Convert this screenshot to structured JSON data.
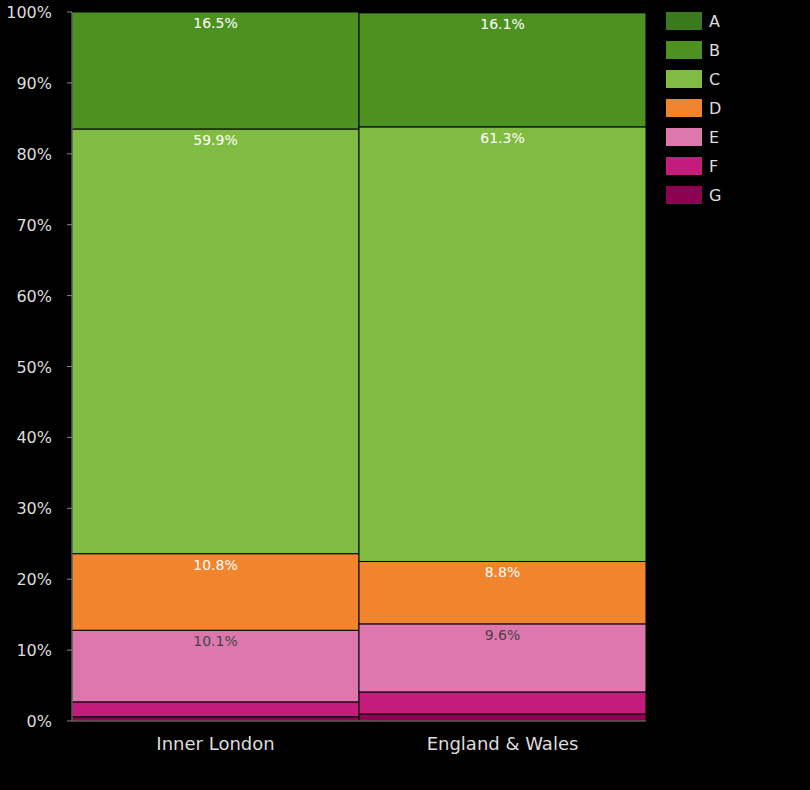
{
  "chart_data": {
    "type": "bar",
    "stacked": true,
    "data_labels": true,
    "legend": "top-right",
    "categories": [
      "Inner London",
      "England & Wales"
    ],
    "ylim": [
      0,
      100
    ],
    "yticks": [
      {
        "value": 0,
        "label": "0%"
      },
      {
        "value": 10,
        "label": "10%"
      },
      {
        "value": 20,
        "label": "20%"
      },
      {
        "value": 30,
        "label": "30%"
      },
      {
        "value": 40,
        "label": "40%"
      },
      {
        "value": 50,
        "label": "50%"
      },
      {
        "value": 60,
        "label": "60%"
      },
      {
        "value": 70,
        "label": "70%"
      },
      {
        "value": 80,
        "label": "80%"
      },
      {
        "value": 90,
        "label": "90%"
      },
      {
        "value": 100,
        "label": "100%"
      }
    ],
    "series": [
      {
        "name": "A",
        "color": "#3a7a1c",
        "values": [
          0,
          0.1
        ],
        "value_labels": [
          null,
          null
        ]
      },
      {
        "name": "B",
        "color": "#4d9221",
        "values": [
          16.5,
          16.1
        ],
        "value_labels": [
          "16.5%",
          "16.1%"
        ]
      },
      {
        "name": "C",
        "color": "#7fbc41",
        "values": [
          59.9,
          61.3
        ],
        "value_labels": [
          "59.9%",
          "61.3%"
        ]
      },
      {
        "name": "D",
        "color": "#f0852d",
        "values": [
          10.8,
          8.8
        ],
        "value_labels": [
          "10.8%",
          "8.8%"
        ]
      },
      {
        "name": "E",
        "color": "#de77ae",
        "values": [
          10.1,
          9.6
        ],
        "value_labels": [
          "10.1%",
          "9.6%"
        ]
      },
      {
        "name": "F",
        "color": "#c51b7d",
        "values": [
          2.1,
          3.1
        ],
        "value_labels": [
          null,
          null
        ]
      },
      {
        "name": "G",
        "color": "#8e0152",
        "values": [
          0.6,
          1.0
        ],
        "value_labels": [
          null,
          null
        ]
      }
    ]
  }
}
